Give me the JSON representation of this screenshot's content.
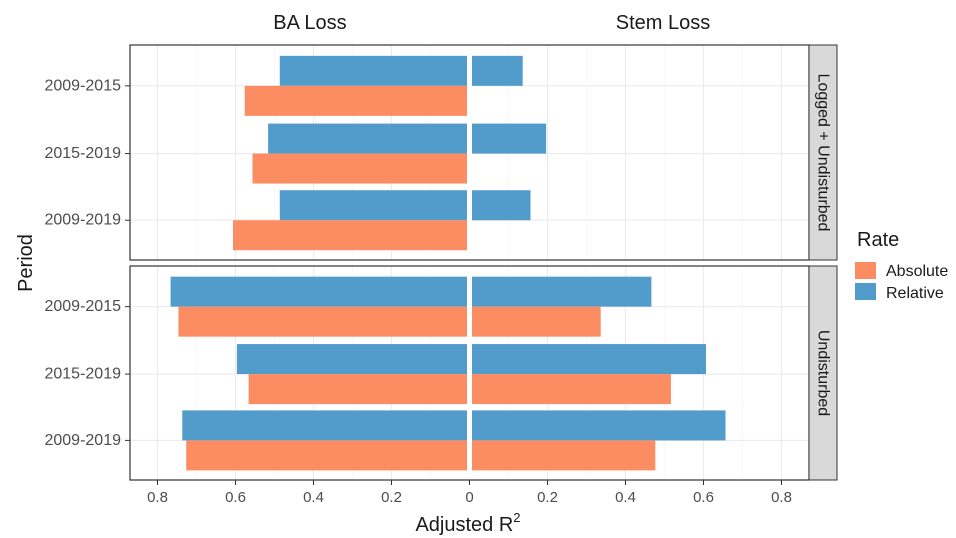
{
  "chart_data": {
    "type": "bar",
    "orientation": "horizontal",
    "layout": "back-to-back faceted",
    "column_titles": [
      "BA Loss",
      "Stem Loss"
    ],
    "row_strips": [
      "Logged + Undisturbed",
      "Undisturbed"
    ],
    "categories": [
      "2009-2015",
      "2015-2019",
      "2009-2019"
    ],
    "xlabel": "Adjusted R",
    "xlabel_superscript": "2",
    "ylabel": "Period",
    "x_ticks": [
      "0.8",
      "0.6",
      "0.4",
      "0.2",
      "0",
      "0.2",
      "0.4",
      "0.6",
      "0.8"
    ],
    "xlim": [
      0,
      0.87
    ],
    "legend": {
      "title": "Rate",
      "position": "right",
      "entries": [
        {
          "name": "Absolute",
          "color": "#FC8D62"
        },
        {
          "name": "Relative",
          "color": "#529CCC"
        }
      ]
    },
    "grid": true,
    "facets": [
      {
        "row": "Logged + Undisturbed",
        "series": [
          {
            "name": "Relative",
            "ba_loss": [
              0.48,
              0.51,
              0.48
            ],
            "stem_loss": [
              0.13,
              0.19,
              0.15
            ]
          },
          {
            "name": "Absolute",
            "ba_loss": [
              0.57,
              0.55,
              0.6
            ],
            "stem_loss": [
              0.0,
              0.0,
              0.0
            ]
          }
        ]
      },
      {
        "row": "Undisturbed",
        "series": [
          {
            "name": "Relative",
            "ba_loss": [
              0.76,
              0.59,
              0.73
            ],
            "stem_loss": [
              0.46,
              0.6,
              0.65
            ]
          },
          {
            "name": "Absolute",
            "ba_loss": [
              0.74,
              0.56,
              0.72
            ],
            "stem_loss": [
              0.33,
              0.51,
              0.47
            ]
          }
        ]
      }
    ]
  }
}
